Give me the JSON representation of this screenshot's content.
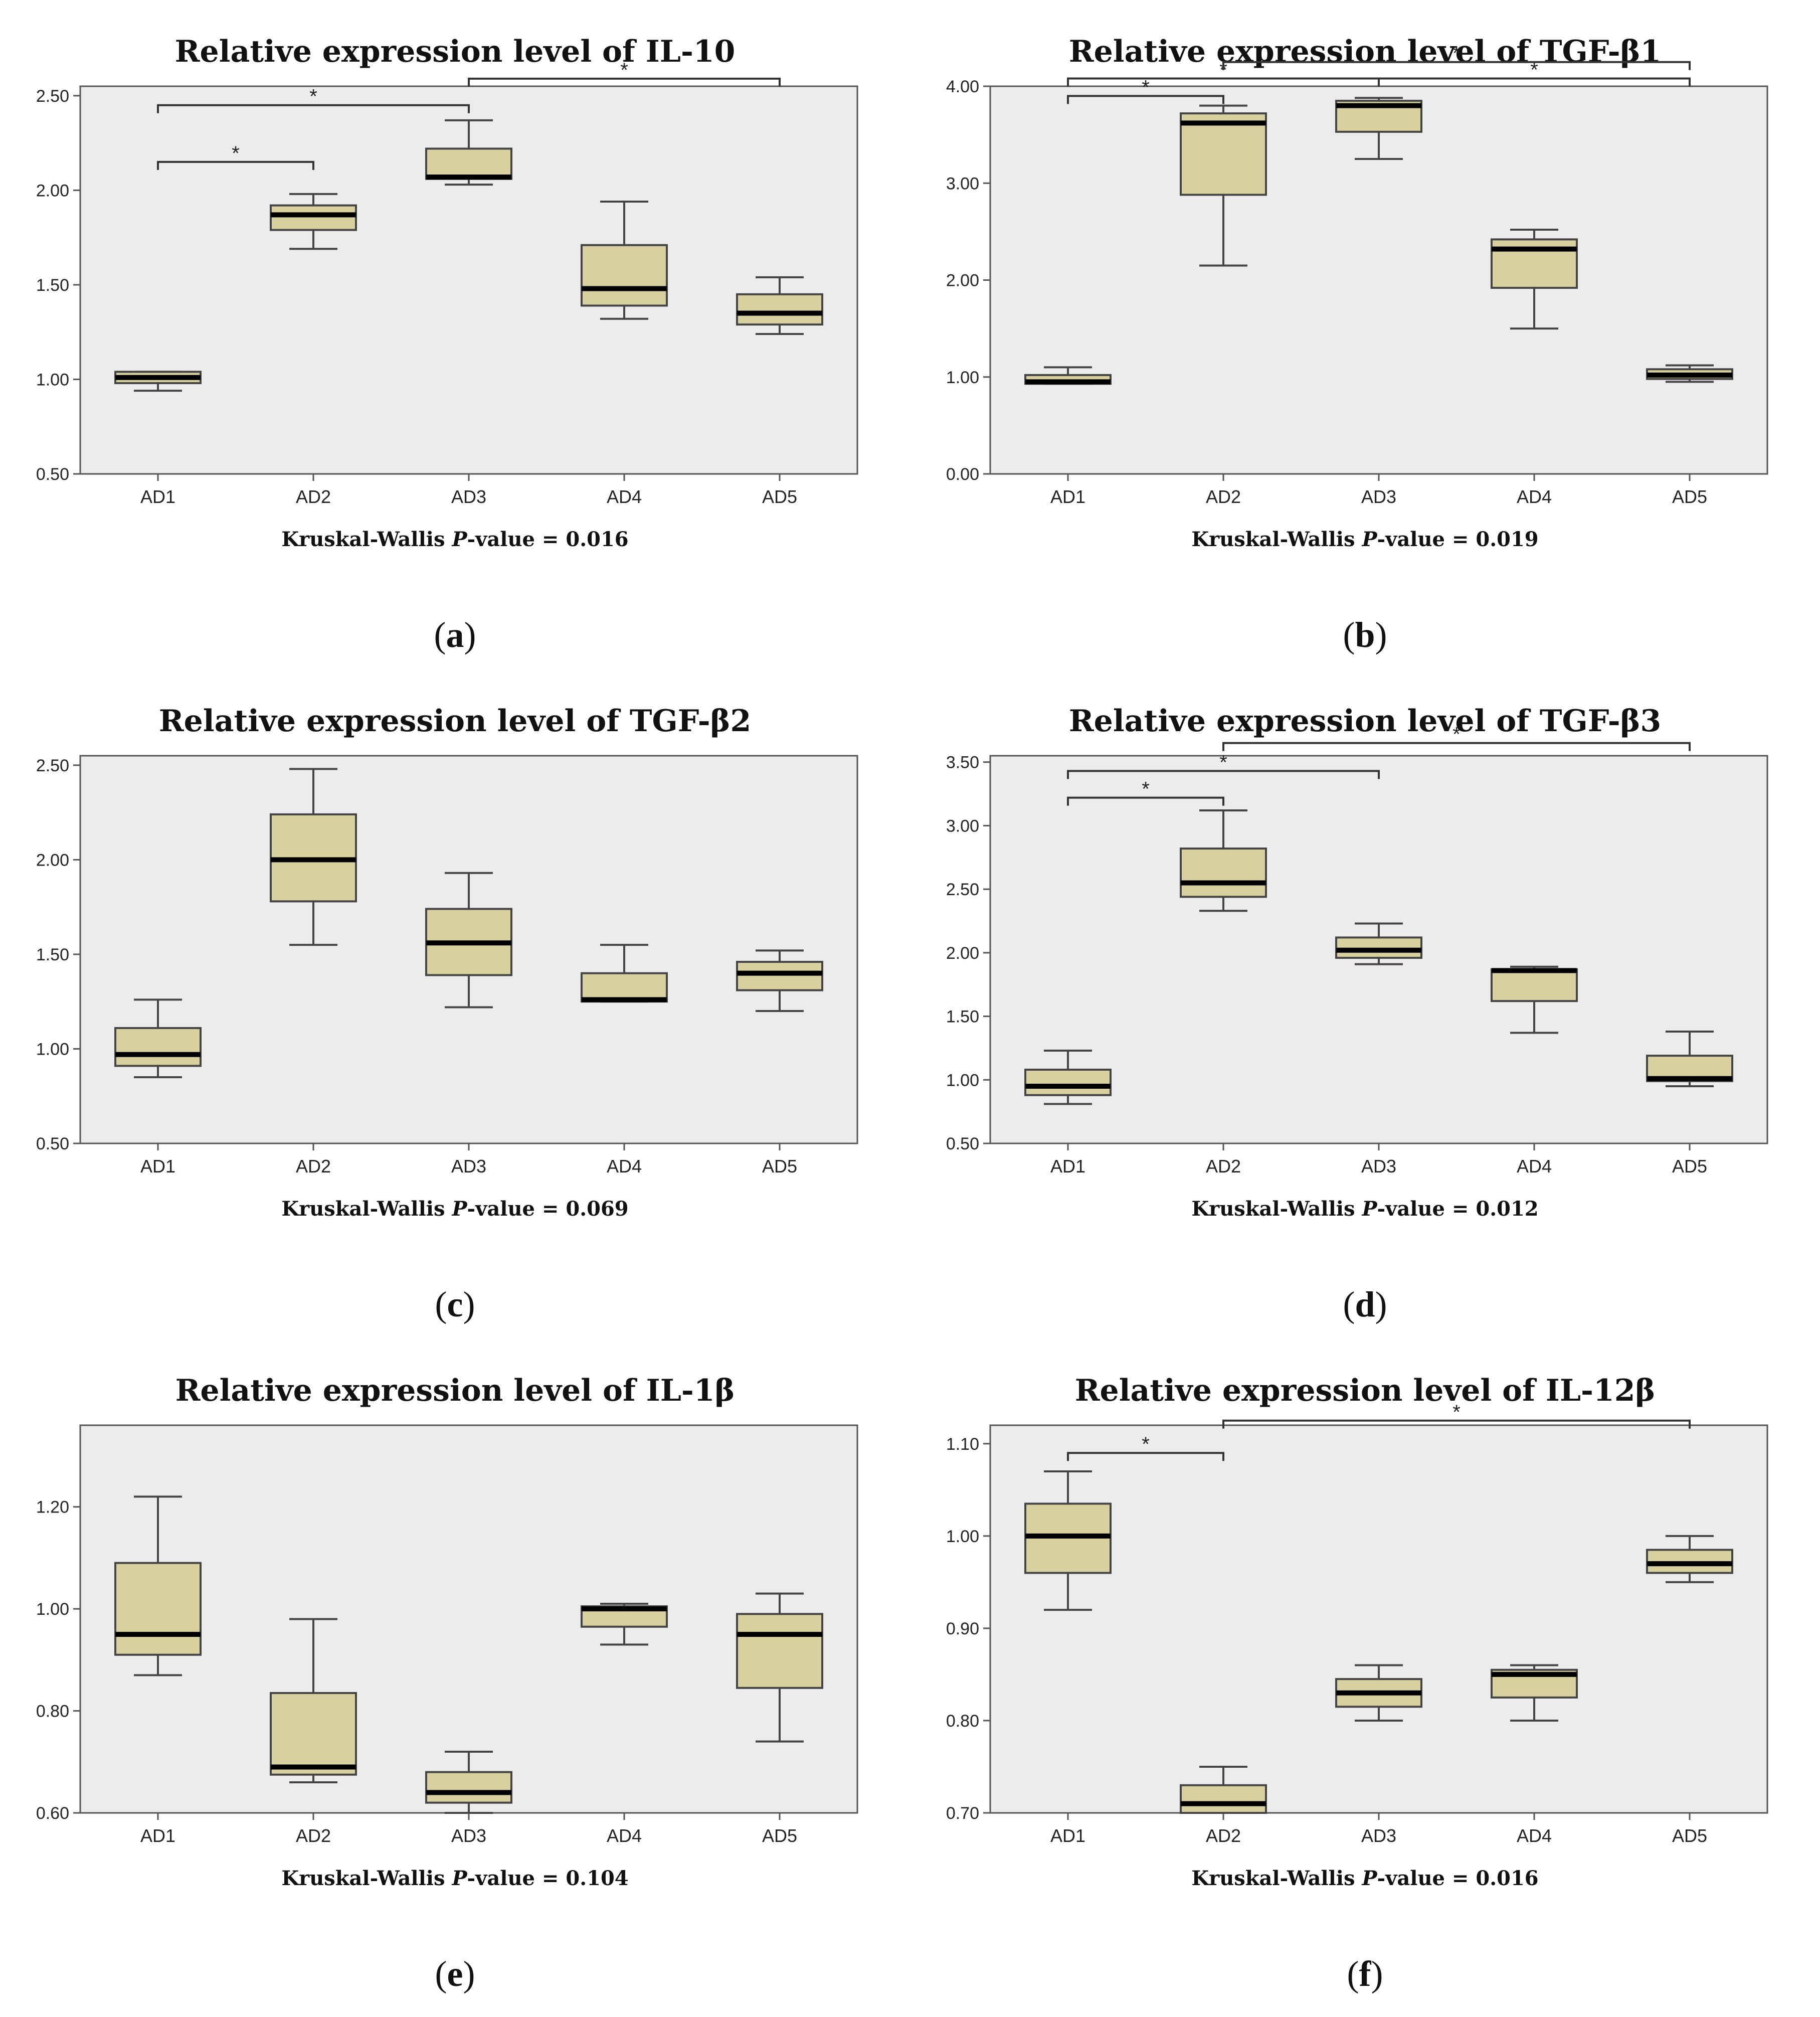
{
  "figure": {
    "footer_prefix": "Kruskal-Wallis ",
    "footer_p": "P",
    "footer_mid": "-value = ",
    "significance_mark": "*"
  },
  "colors": {
    "box_fill": "#d9d09f",
    "plot_background": "#ececec",
    "frame": "#555555",
    "whisker": "#444444",
    "median": "#000000"
  },
  "chart_data": [
    {
      "id": "a",
      "type": "boxplot",
      "title": "Relative expression level of IL-10",
      "panel_label": "a",
      "p_value": "0.016",
      "categories": [
        "AD1",
        "AD2",
        "AD3",
        "AD4",
        "AD5"
      ],
      "ylim": [
        0.5,
        2.55
      ],
      "yticks": [
        0.5,
        1.0,
        1.5,
        2.0,
        2.5
      ],
      "ytick_labels": [
        "0.50",
        "1.00",
        "1.50",
        "2.00",
        "2.50"
      ],
      "boxes": [
        {
          "category": "AD1",
          "whisker_low": 0.94,
          "q1": 0.98,
          "median": 1.01,
          "q3": 1.04,
          "whisker_high": 1.04
        },
        {
          "category": "AD2",
          "whisker_low": 1.69,
          "q1": 1.79,
          "median": 1.87,
          "q3": 1.92,
          "whisker_high": 1.98
        },
        {
          "category": "AD3",
          "whisker_low": 2.03,
          "q1": 2.06,
          "median": 2.07,
          "q3": 2.22,
          "whisker_high": 2.37
        },
        {
          "category": "AD4",
          "whisker_low": 1.32,
          "q1": 1.39,
          "median": 1.48,
          "q3": 1.71,
          "whisker_high": 1.94
        },
        {
          "category": "AD5",
          "whisker_low": 1.24,
          "q1": 1.29,
          "median": 1.35,
          "q3": 1.45,
          "whisker_high": 1.54
        }
      ],
      "brackets": [
        {
          "from": "AD1",
          "to": "AD2",
          "level": 2.15
        },
        {
          "from": "AD1",
          "to": "AD3",
          "level": 2.45
        },
        {
          "from": "AD3",
          "to": "AD5",
          "level": 2.59
        }
      ]
    },
    {
      "id": "b",
      "type": "boxplot",
      "title": "Relative expression level of TGF-β1",
      "panel_label": "b",
      "p_value": "0.019",
      "categories": [
        "AD1",
        "AD2",
        "AD3",
        "AD4",
        "AD5"
      ],
      "ylim": [
        0.0,
        4.0
      ],
      "yticks": [
        0,
        1,
        2,
        3,
        4
      ],
      "ytick_labels": [
        "0.00",
        "1.00",
        "2.00",
        "3.00",
        "4.00"
      ],
      "boxes": [
        {
          "category": "AD1",
          "whisker_low": 0.93,
          "q1": 0.93,
          "median": 0.95,
          "q3": 1.02,
          "whisker_high": 1.1
        },
        {
          "category": "AD2",
          "whisker_low": 2.15,
          "q1": 2.88,
          "median": 3.62,
          "q3": 3.72,
          "whisker_high": 3.8
        },
        {
          "category": "AD3",
          "whisker_low": 3.25,
          "q1": 3.53,
          "median": 3.8,
          "q3": 3.85,
          "whisker_high": 3.88
        },
        {
          "category": "AD4",
          "whisker_low": 1.5,
          "q1": 1.92,
          "median": 2.32,
          "q3": 2.42,
          "whisker_high": 2.52
        },
        {
          "category": "AD5",
          "whisker_low": 0.95,
          "q1": 0.98,
          "median": 1.02,
          "q3": 1.08,
          "whisker_high": 1.12
        }
      ],
      "brackets": [
        {
          "from": "AD1",
          "to": "AD2",
          "level": 3.9
        },
        {
          "from": "AD1",
          "to": "AD3",
          "level": 4.08
        },
        {
          "from": "AD3",
          "to": "AD5",
          "level": 4.08
        },
        {
          "from": "AD2",
          "to": "AD5",
          "level": 4.25
        }
      ]
    },
    {
      "id": "c",
      "type": "boxplot",
      "title": "Relative expression level of TGF-β2",
      "panel_label": "c",
      "p_value": "0.069",
      "categories": [
        "AD1",
        "AD2",
        "AD3",
        "AD4",
        "AD5"
      ],
      "ylim": [
        0.5,
        2.55
      ],
      "yticks": [
        0.5,
        1.0,
        1.5,
        2.0,
        2.5
      ],
      "ytick_labels": [
        "0.50",
        "1.00",
        "1.50",
        "2.00",
        "2.50"
      ],
      "boxes": [
        {
          "category": "AD1",
          "whisker_low": 0.85,
          "q1": 0.91,
          "median": 0.97,
          "q3": 1.11,
          "whisker_high": 1.26
        },
        {
          "category": "AD2",
          "whisker_low": 1.55,
          "q1": 1.78,
          "median": 2.0,
          "q3": 2.24,
          "whisker_high": 2.48
        },
        {
          "category": "AD3",
          "whisker_low": 1.22,
          "q1": 1.39,
          "median": 1.56,
          "q3": 1.74,
          "whisker_high": 1.93
        },
        {
          "category": "AD4",
          "whisker_low": 1.25,
          "q1": 1.25,
          "median": 1.26,
          "q3": 1.4,
          "whisker_high": 1.55
        },
        {
          "category": "AD5",
          "whisker_low": 1.2,
          "q1": 1.31,
          "median": 1.4,
          "q3": 1.46,
          "whisker_high": 1.52
        }
      ],
      "brackets": []
    },
    {
      "id": "d",
      "type": "boxplot",
      "title": "Relative expression level of TGF-β3",
      "panel_label": "d",
      "p_value": "0.012",
      "categories": [
        "AD1",
        "AD2",
        "AD3",
        "AD4",
        "AD5"
      ],
      "ylim": [
        0.5,
        3.55
      ],
      "yticks": [
        0.5,
        1.0,
        1.5,
        2.0,
        2.5,
        3.0,
        3.5
      ],
      "ytick_labels": [
        "0.50",
        "1.00",
        "1.50",
        "2.00",
        "2.50",
        "3.00",
        "3.50"
      ],
      "boxes": [
        {
          "category": "AD1",
          "whisker_low": 0.81,
          "q1": 0.88,
          "median": 0.95,
          "q3": 1.08,
          "whisker_high": 1.23
        },
        {
          "category": "AD2",
          "whisker_low": 2.33,
          "q1": 2.44,
          "median": 2.55,
          "q3": 2.82,
          "whisker_high": 3.12
        },
        {
          "category": "AD3",
          "whisker_low": 1.91,
          "q1": 1.96,
          "median": 2.02,
          "q3": 2.12,
          "whisker_high": 2.23
        },
        {
          "category": "AD4",
          "whisker_low": 1.37,
          "q1": 1.62,
          "median": 1.86,
          "q3": 1.87,
          "whisker_high": 1.89
        },
        {
          "category": "AD5",
          "whisker_low": 0.95,
          "q1": 0.99,
          "median": 1.01,
          "q3": 1.19,
          "whisker_high": 1.38
        }
      ],
      "brackets": [
        {
          "from": "AD1",
          "to": "AD2",
          "level": 3.22
        },
        {
          "from": "AD1",
          "to": "AD3",
          "level": 3.43
        },
        {
          "from": "AD2",
          "to": "AD5",
          "level": 3.65
        }
      ]
    },
    {
      "id": "e",
      "type": "boxplot",
      "title": "Relative expression level of IL-1β",
      "panel_label": "e",
      "p_value": "0.104",
      "categories": [
        "AD1",
        "AD2",
        "AD3",
        "AD4",
        "AD5"
      ],
      "ylim": [
        0.6,
        1.36
      ],
      "yticks": [
        0.6,
        0.8,
        1.0,
        1.2
      ],
      "ytick_labels": [
        "0.60",
        "0.80",
        "1.00",
        "1.20"
      ],
      "boxes": [
        {
          "category": "AD1",
          "whisker_low": 0.87,
          "q1": 0.91,
          "median": 0.95,
          "q3": 1.09,
          "whisker_high": 1.22
        },
        {
          "category": "AD2",
          "whisker_low": 0.66,
          "q1": 0.675,
          "median": 0.69,
          "q3": 0.835,
          "whisker_high": 0.98
        },
        {
          "category": "AD3",
          "whisker_low": 0.6,
          "q1": 0.62,
          "median": 0.64,
          "q3": 0.68,
          "whisker_high": 0.72
        },
        {
          "category": "AD4",
          "whisker_low": 0.93,
          "q1": 0.965,
          "median": 1.0,
          "q3": 1.005,
          "whisker_high": 1.01
        },
        {
          "category": "AD5",
          "whisker_low": 0.74,
          "q1": 0.845,
          "median": 0.95,
          "q3": 0.99,
          "whisker_high": 1.03
        }
      ],
      "brackets": []
    },
    {
      "id": "f",
      "type": "boxplot",
      "title": "Relative expression level of IL-12β",
      "panel_label": "f",
      "p_value": "0.016",
      "categories": [
        "AD1",
        "AD2",
        "AD3",
        "AD4",
        "AD5"
      ],
      "ylim": [
        0.7,
        1.12
      ],
      "yticks": [
        0.7,
        0.8,
        0.9,
        1.0,
        1.1
      ],
      "ytick_labels": [
        "0.70",
        "0.80",
        "0.90",
        "1.00",
        "1.10"
      ],
      "boxes": [
        {
          "category": "AD1",
          "whisker_low": 0.92,
          "q1": 0.96,
          "median": 1.0,
          "q3": 1.035,
          "whisker_high": 1.07
        },
        {
          "category": "AD2",
          "whisker_low": 0.7,
          "q1": 0.7,
          "median": 0.71,
          "q3": 0.73,
          "whisker_high": 0.75
        },
        {
          "category": "AD3",
          "whisker_low": 0.8,
          "q1": 0.815,
          "median": 0.83,
          "q3": 0.845,
          "whisker_high": 0.86
        },
        {
          "category": "AD4",
          "whisker_low": 0.8,
          "q1": 0.825,
          "median": 0.85,
          "q3": 0.855,
          "whisker_high": 0.86
        },
        {
          "category": "AD5",
          "whisker_low": 0.95,
          "q1": 0.96,
          "median": 0.97,
          "q3": 0.985,
          "whisker_high": 1.0
        }
      ],
      "brackets": [
        {
          "from": "AD1",
          "to": "AD2",
          "level": 1.09
        },
        {
          "from": "AD2",
          "to": "AD5",
          "level": 1.125
        }
      ]
    }
  ]
}
